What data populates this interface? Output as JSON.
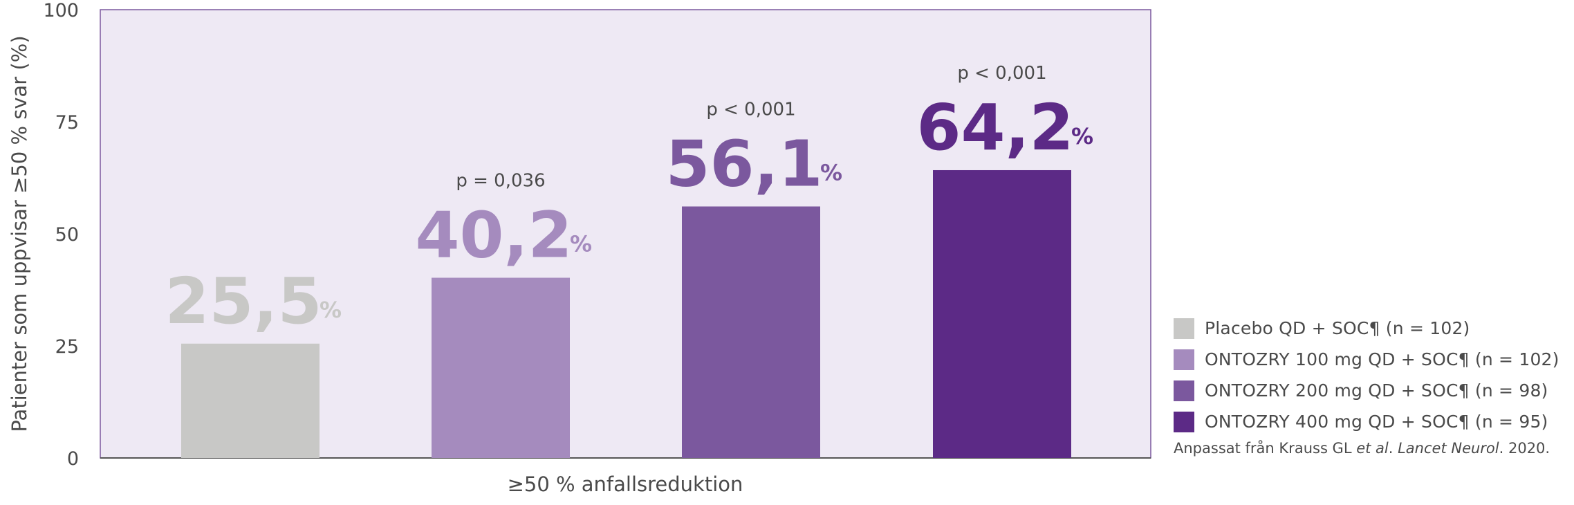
{
  "chart_data": {
    "type": "bar",
    "ylabel": "Patienter som uppvisar ≥50 % svar (%)",
    "xlabel": "≥50 % anfallsreduktion",
    "ylim": [
      0,
      100
    ],
    "yticks": [
      "0",
      "25",
      "50",
      "75",
      "100"
    ],
    "grid": false,
    "legend_position": "bottom-right",
    "series": [
      {
        "name": "Placebo QD + SOC¶ (n = 102)",
        "value": 25.5,
        "value_label": "25,5",
        "unit": "%",
        "p_value": "",
        "color": "#c8c8c6",
        "label_color": "#c8c8c6"
      },
      {
        "name": "ONTOZRY 100 mg QD + SOC¶ (n = 102)",
        "value": 40.2,
        "value_label": "40,2",
        "unit": "%",
        "p_value": "p = 0,036",
        "color": "#a58bbe",
        "label_color": "#a58bbe"
      },
      {
        "name": "ONTOZRY 200 mg QD + SOC¶ (n = 98)",
        "value": 56.1,
        "value_label": "56,1",
        "unit": "%",
        "p_value": "p < 0,001",
        "color": "#7b589e",
        "label_color": "#7b589e"
      },
      {
        "name": "ONTOZRY 400 mg QD + SOC¶ (n = 95)",
        "value": 64.2,
        "value_label": "64,2",
        "unit": "%",
        "p_value": "p < 0,001",
        "color": "#5c2a86",
        "label_color": "#5c2a86"
      }
    ],
    "plot_background": "#eee9f4",
    "frame_color": "#7b589e"
  },
  "source": {
    "prefix": "Anpassat från Krauss GL ",
    "etal": "et al",
    "mid": ". ",
    "journal": "Lancet Neurol",
    "suffix": ". 2020."
  }
}
